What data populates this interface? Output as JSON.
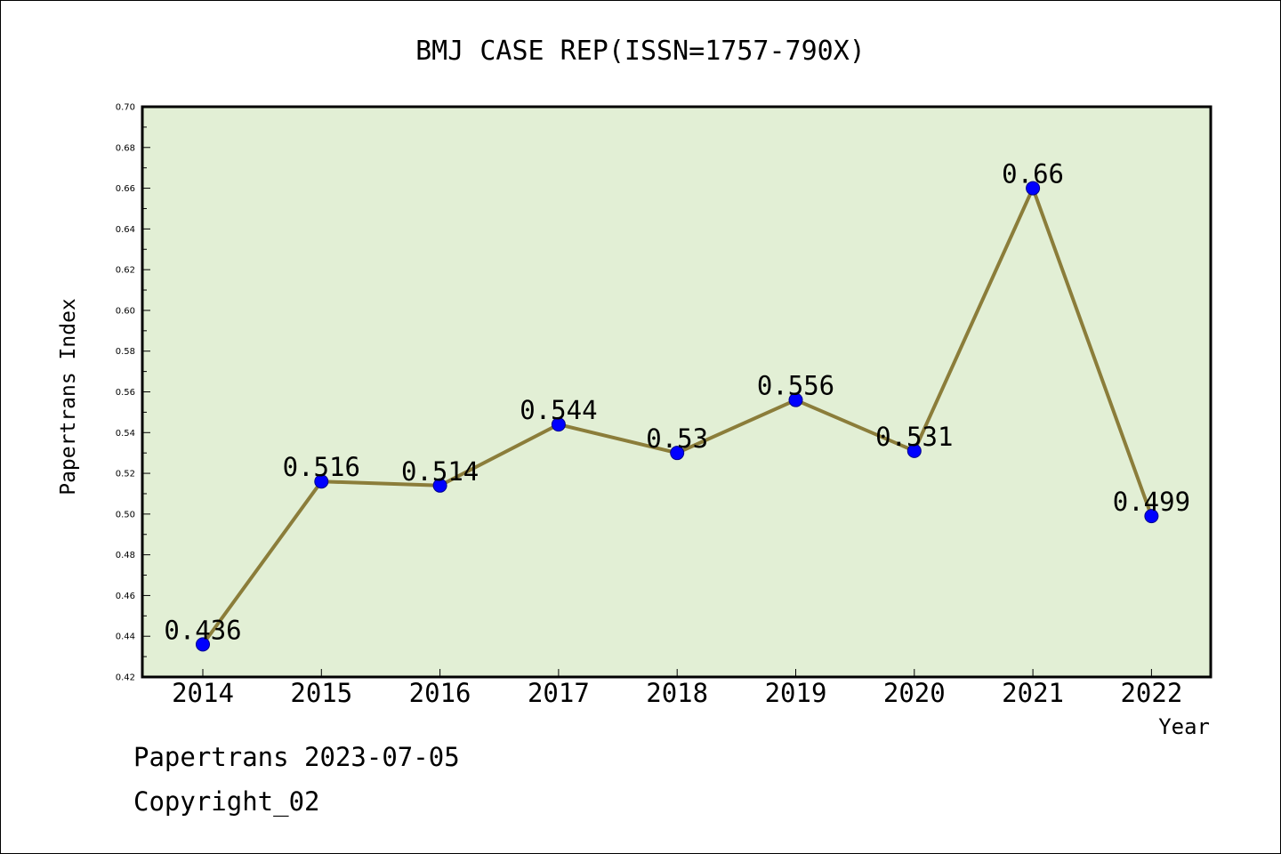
{
  "chart_data": {
    "type": "line",
    "title": "BMJ CASE REP(ISSN=1757-790X)",
    "xlabel": "Year",
    "ylabel": "Papertrans Index",
    "categories": [
      "2014",
      "2015",
      "2016",
      "2017",
      "2018",
      "2019",
      "2020",
      "2021",
      "2022"
    ],
    "series": [
      {
        "values": [
          0.436,
          0.516,
          0.514,
          0.544,
          0.53,
          0.556,
          0.531,
          0.66,
          0.499
        ],
        "data_labels": [
          "0.436",
          "0.516",
          "0.514",
          "0.544",
          "0.53",
          "0.556",
          "0.531",
          "0.66",
          "0.499"
        ]
      }
    ],
    "ylim": [
      0.42,
      0.7
    ],
    "yticks": [
      "0.42",
      "0.44",
      "0.46",
      "0.48",
      "0.50",
      "0.52",
      "0.54",
      "0.56",
      "0.58",
      "0.60",
      "0.62",
      "0.64",
      "0.66",
      "0.68",
      "0.70"
    ],
    "grid": false,
    "legend": "none",
    "colors": {
      "plot_background": "#e2efd5",
      "line": "#8b7d3a",
      "marker": "#0000ff",
      "marker_edge": "#00008b"
    }
  },
  "footer": {
    "date_line": "Papertrans 2023-07-05",
    "copyright": "Copyright_02"
  }
}
